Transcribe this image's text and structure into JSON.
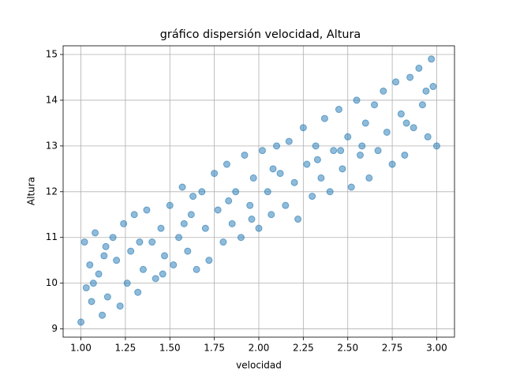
{
  "chart_data": {
    "type": "scatter",
    "title": "gráfico dispersión velocidad, Altura",
    "x_label": "velocidad",
    "y_label": "Altura",
    "color": "#1f77b4",
    "grid": true,
    "xlim": [
      0.9,
      3.1
    ],
    "ylim": [
      8.82,
      15.19
    ],
    "xticks": [
      {
        "value": 1,
        "label": "1.00"
      },
      {
        "value": 1.25,
        "label": "1.25"
      },
      {
        "value": 1.5,
        "label": "1.50"
      },
      {
        "value": 1.75,
        "label": "1.75"
      },
      {
        "value": 2,
        "label": "2.00"
      },
      {
        "value": 2.25,
        "label": "2.25"
      },
      {
        "value": 2.5,
        "label": "2.50"
      },
      {
        "value": 2.75,
        "label": "2.75"
      },
      {
        "value": 3,
        "label": "3.00"
      }
    ],
    "yticks": [
      9,
      10,
      11,
      12,
      13,
      14,
      15
    ],
    "x": [
      1.0,
      1.02,
      1.03,
      1.05,
      1.06,
      1.08,
      1.1,
      1.12,
      1.14,
      1.15,
      1.18,
      1.2,
      1.22,
      1.24,
      1.26,
      1.28,
      1.3,
      1.32,
      1.35,
      1.37,
      1.4,
      1.42,
      1.45,
      1.47,
      1.5,
      1.52,
      1.55,
      1.57,
      1.6,
      1.62,
      1.65,
      1.68,
      1.7,
      1.72,
      1.75,
      1.77,
      1.8,
      1.82,
      1.85,
      1.87,
      1.9,
      1.92,
      1.95,
      1.97,
      2.0,
      2.02,
      2.05,
      2.07,
      2.1,
      2.12,
      2.15,
      2.17,
      2.2,
      2.22,
      2.25,
      2.27,
      2.3,
      2.32,
      2.35,
      2.37,
      2.4,
      2.42,
      2.45,
      2.47,
      2.5,
      2.52,
      2.55,
      2.57,
      2.6,
      2.62,
      2.65,
      2.67,
      2.7,
      2.72,
      2.75,
      2.77,
      2.8,
      2.82,
      2.85,
      2.87,
      2.9,
      2.92,
      2.95,
      2.97,
      3.0,
      1.07,
      1.33,
      1.58,
      1.83,
      2.08,
      2.33,
      2.58,
      2.83,
      2.98,
      1.46,
      1.96,
      2.46,
      2.94,
      1.13,
      1.63
    ],
    "values": [
      9.15,
      10.9,
      9.9,
      10.4,
      9.6,
      11.1,
      10.2,
      9.3,
      10.8,
      9.7,
      11.0,
      10.5,
      9.5,
      11.3,
      10.0,
      10.7,
      11.5,
      9.8,
      10.3,
      11.6,
      10.9,
      10.1,
      11.2,
      10.6,
      11.7,
      10.4,
      11.0,
      12.1,
      10.7,
      11.5,
      10.3,
      12.0,
      11.2,
      10.5,
      12.4,
      11.6,
      10.9,
      12.6,
      11.3,
      12.0,
      11.0,
      12.8,
      11.7,
      12.3,
      11.2,
      12.9,
      12.0,
      11.5,
      13.0,
      12.4,
      11.7,
      13.1,
      12.2,
      11.4,
      13.4,
      12.6,
      11.9,
      13.0,
      12.3,
      13.6,
      12.0,
      12.9,
      13.8,
      12.5,
      13.2,
      12.1,
      14.0,
      12.8,
      13.5,
      12.3,
      13.9,
      12.9,
      14.2,
      13.3,
      12.6,
      14.4,
      13.7,
      12.8,
      14.5,
      13.4,
      14.7,
      13.9,
      13.2,
      14.9,
      13.0,
      10.0,
      10.9,
      11.3,
      11.8,
      12.5,
      12.7,
      13.0,
      13.5,
      14.3,
      10.2,
      11.4,
      12.9,
      14.2,
      10.6,
      11.9
    ]
  }
}
